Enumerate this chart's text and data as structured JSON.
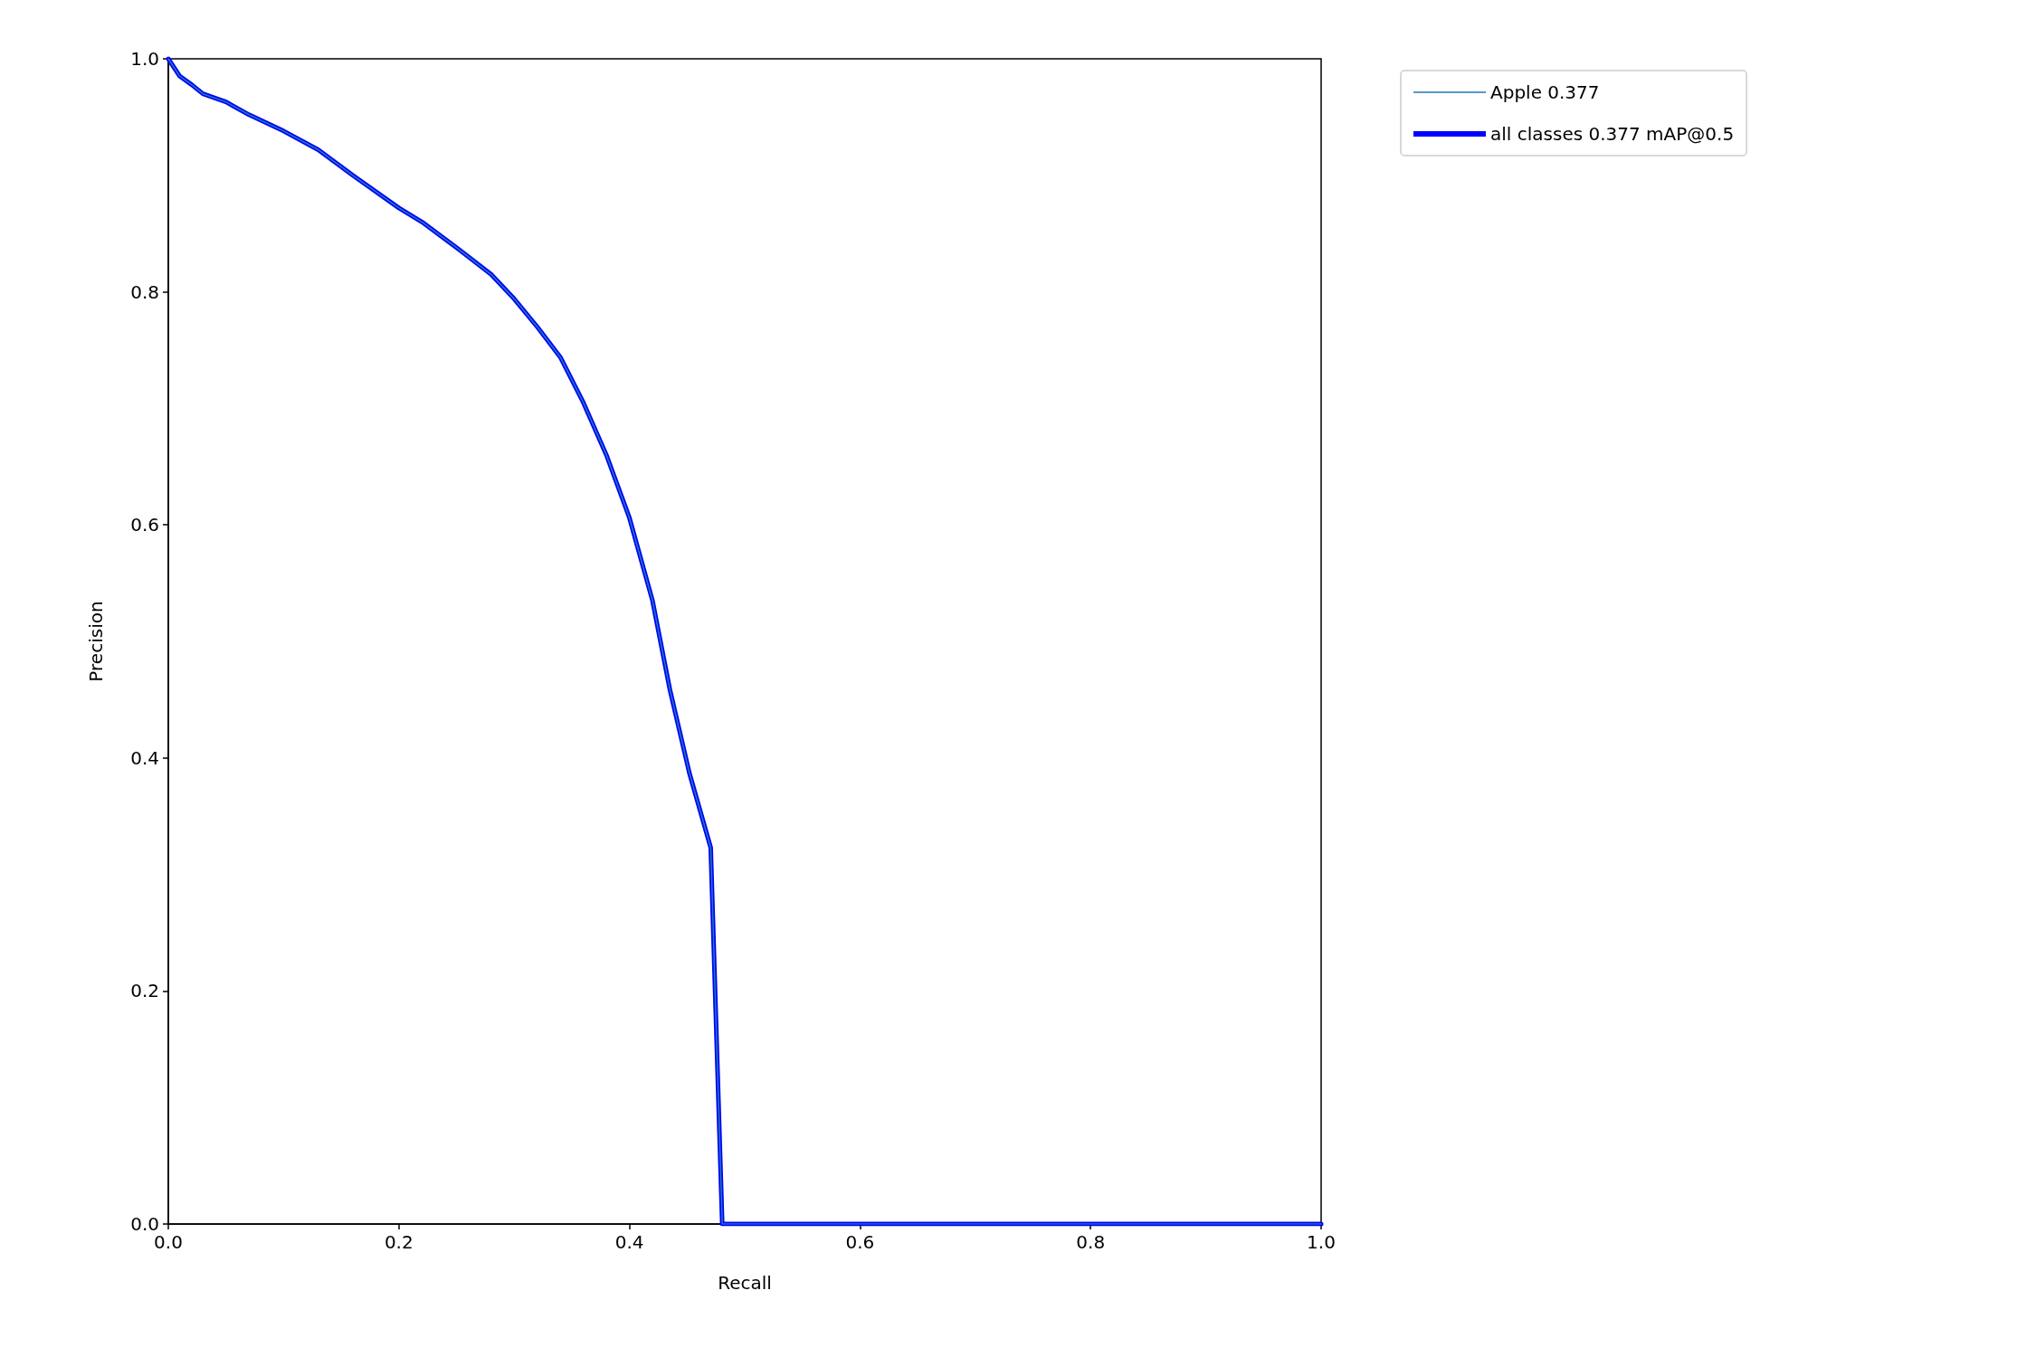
{
  "chart_data": {
    "type": "line",
    "xlabel": "Recall",
    "ylabel": "Precision",
    "xlim": [
      0,
      1
    ],
    "ylim": [
      0,
      1
    ],
    "xticks": [
      {
        "value": 0,
        "label": "0.0"
      },
      {
        "value": 0.2,
        "label": "0.2"
      },
      {
        "value": 0.4,
        "label": "0.4"
      },
      {
        "value": 0.6,
        "label": "0.6"
      },
      {
        "value": 0.8,
        "label": "0.8"
      },
      {
        "value": 1,
        "label": "1.0"
      }
    ],
    "yticks": [
      {
        "value": 0,
        "label": "0.0"
      },
      {
        "value": 0.2,
        "label": "0.2"
      },
      {
        "value": 0.4,
        "label": "0.4"
      },
      {
        "value": 0.6,
        "label": "0.6"
      },
      {
        "value": 0.8,
        "label": "0.8"
      },
      {
        "value": 1,
        "label": "1.0"
      }
    ],
    "x": [
      0,
      0.01,
      0.02,
      0.03,
      0.05,
      0.07,
      0.1,
      0.13,
      0.16,
      0.2,
      0.22,
      0.25,
      0.28,
      0.3,
      0.32,
      0.34,
      0.36,
      0.38,
      0.4,
      0.42,
      0.435,
      0.452,
      0.4705,
      0.4805,
      1.0
    ],
    "series": [
      {
        "name": "Apple 0.377",
        "color": "#1f77b4",
        "values": [
          1.0,
          0.985,
          0.978,
          0.97,
          0.963,
          0.952,
          0.938,
          0.922,
          0.9,
          0.872,
          0.86,
          0.838,
          0.815,
          0.794,
          0.77,
          0.744,
          0.705,
          0.66,
          0.606,
          0.535,
          0.459,
          0.387,
          0.323,
          0.0,
          0.0
        ]
      },
      {
        "name": "all classes 0.377 mAP@0.5",
        "color": "#0000ff",
        "values": [
          1.0,
          0.985,
          0.978,
          0.97,
          0.963,
          0.952,
          0.938,
          0.922,
          0.9,
          0.872,
          0.86,
          0.838,
          0.815,
          0.794,
          0.77,
          0.744,
          0.705,
          0.66,
          0.606,
          0.535,
          0.459,
          0.387,
          0.323,
          0.0,
          0.0
        ]
      }
    ],
    "grid": false,
    "legend": "top right"
  }
}
